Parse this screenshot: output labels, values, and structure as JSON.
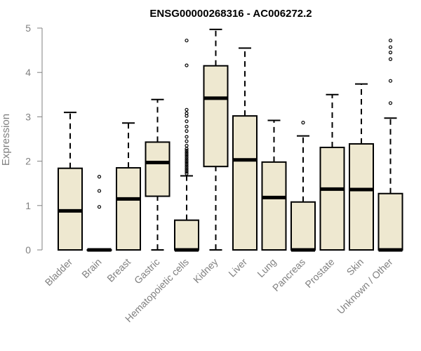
{
  "chart_data": {
    "type": "box",
    "title": "ENSG00000268316 - AC006272.2",
    "ylabel": "Expression",
    "xlabel": "",
    "ylim": [
      0,
      5
    ],
    "yticks": [
      0,
      1,
      2,
      3,
      4,
      5
    ],
    "grid": false,
    "box_fill": "#EEE8D0",
    "categories": [
      "Bladder",
      "Brain",
      "Breast",
      "Gastric",
      "Hematopoietic cells",
      "Kidney",
      "Liver",
      "Lung",
      "Pancreas",
      "Prostate",
      "Skin",
      "Unknown / Other"
    ],
    "boxes": [
      {
        "name": "Bladder",
        "whisker_low": 0,
        "q1": 0,
        "median": 0.88,
        "q3": 1.84,
        "whisker_high": 3.1,
        "outliers": []
      },
      {
        "name": "Brain",
        "whisker_low": 0,
        "q1": 0,
        "median": 0,
        "q3": 0,
        "whisker_high": 0,
        "outliers": [
          0.97,
          1.33,
          1.65
        ]
      },
      {
        "name": "Breast",
        "whisker_low": 0,
        "q1": 0,
        "median": 1.15,
        "q3": 1.85,
        "whisker_high": 2.86,
        "outliers": []
      },
      {
        "name": "Gastric",
        "whisker_low": 0,
        "q1": 1.21,
        "median": 1.97,
        "q3": 2.43,
        "whisker_high": 3.39,
        "outliers": []
      },
      {
        "name": "Hematopoietic cells",
        "whisker_low": 0,
        "q1": 0,
        "median": 0,
        "q3": 0.67,
        "whisker_high": 1.67,
        "outliers": [
          1.72,
          1.76,
          1.8,
          1.84,
          1.88,
          1.92,
          1.96,
          2.0,
          2.04,
          2.08,
          2.12,
          2.16,
          2.2,
          2.24,
          2.28,
          2.35,
          2.45,
          2.55,
          2.68,
          2.78,
          2.9,
          3.02,
          3.08,
          3.16,
          4.16,
          4.72
        ]
      },
      {
        "name": "Kidney",
        "whisker_low": 0,
        "q1": 1.88,
        "median": 3.42,
        "q3": 4.15,
        "whisker_high": 4.97,
        "outliers": []
      },
      {
        "name": "Liver",
        "whisker_low": 0,
        "q1": 0,
        "median": 2.03,
        "q3": 3.02,
        "whisker_high": 4.55,
        "outliers": []
      },
      {
        "name": "Lung",
        "whisker_low": 0,
        "q1": 0,
        "median": 1.18,
        "q3": 1.98,
        "whisker_high": 2.92,
        "outliers": []
      },
      {
        "name": "Pancreas",
        "whisker_low": 0,
        "q1": 0,
        "median": 0,
        "q3": 1.08,
        "whisker_high": 2.57,
        "outliers": [
          2.87
        ]
      },
      {
        "name": "Prostate",
        "whisker_low": 0,
        "q1": 0,
        "median": 1.37,
        "q3": 2.31,
        "whisker_high": 3.5,
        "outliers": []
      },
      {
        "name": "Skin",
        "whisker_low": 0,
        "q1": 0,
        "median": 1.36,
        "q3": 2.39,
        "whisker_high": 3.74,
        "outliers": []
      },
      {
        "name": "Unknown / Other",
        "whisker_low": 0,
        "q1": 0,
        "median": 0,
        "q3": 1.27,
        "whisker_high": 2.97,
        "outliers": [
          3.31,
          3.81,
          4.3,
          4.45,
          4.57,
          4.72
        ]
      }
    ]
  }
}
